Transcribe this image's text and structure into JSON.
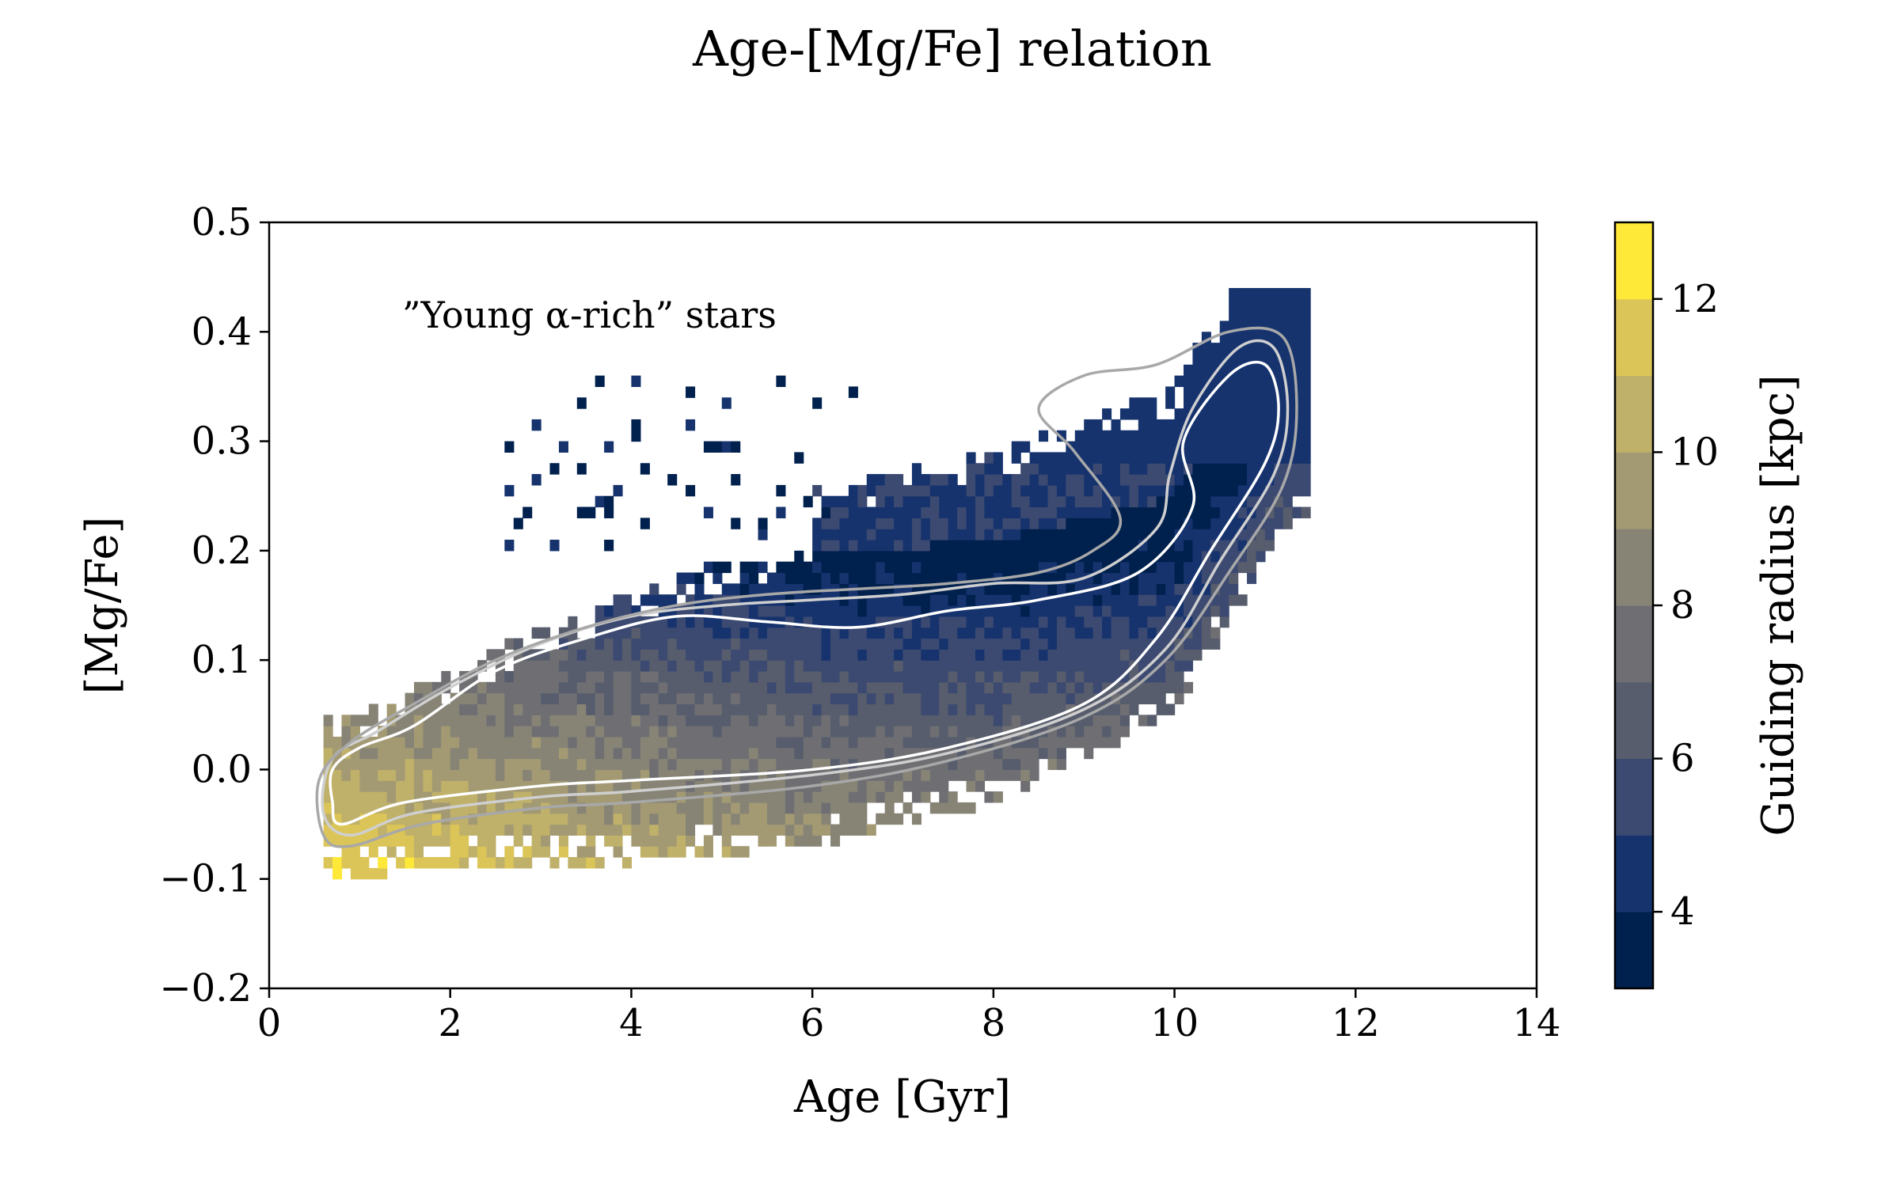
{
  "chart_data": {
    "type": "heatmap",
    "title": "Age-[Mg/Fe] relation",
    "xlabel": "Age [Gyr]",
    "ylabel": "[Mg/Fe]",
    "xlim": [
      0,
      14
    ],
    "ylim": [
      -0.2,
      0.5
    ],
    "xticks": [
      0,
      2,
      4,
      6,
      8,
      10,
      12,
      14
    ],
    "xtick_labels": [
      "0",
      "2",
      "4",
      "6",
      "8",
      "10",
      "12",
      "14"
    ],
    "yticks": [
      -0.2,
      -0.1,
      0.0,
      0.1,
      0.2,
      0.3,
      0.4,
      0.5
    ],
    "ytick_labels": [
      "−0.2",
      "−0.1",
      "0.0",
      "0.1",
      "0.2",
      "0.3",
      "0.4",
      "0.5"
    ],
    "grid": false,
    "annotation": "”Young α-rich” stars",
    "colorbar": {
      "label": "Guiding radius [kpc]",
      "range": [
        3,
        13
      ],
      "ticks": [
        4,
        6,
        8,
        10,
        12
      ],
      "tick_labels": [
        "4",
        "6",
        "8",
        "10",
        "12"
      ],
      "levels": [
        {
          "from": 3,
          "to": 4,
          "color": "#00204d"
        },
        {
          "from": 4,
          "to": 5,
          "color": "#16336e"
        },
        {
          "from": 5,
          "to": 6,
          "color": "#3c4a71"
        },
        {
          "from": 6,
          "to": 7,
          "color": "#575d6d"
        },
        {
          "from": 7,
          "to": 8,
          "color": "#6f6f73"
        },
        {
          "from": 8,
          "to": 9,
          "color": "#878476"
        },
        {
          "from": 9,
          "to": 10,
          "color": "#a39a73"
        },
        {
          "from": 10,
          "to": 11,
          "color": "#bfb06a"
        },
        {
          "from": 11,
          "to": 12,
          "color": "#dcc558"
        },
        {
          "from": 12,
          "to": 13,
          "color": "#fee838"
        }
      ]
    },
    "heatmap_model": {
      "bin_width_gyr": 0.1,
      "bin_height_dex": 0.01,
      "low_sequence_mgfe_by_age": [
        [
          0.6,
          -0.03
        ],
        [
          2,
          -0.02
        ],
        [
          4,
          -0.015
        ],
        [
          6,
          0.0
        ],
        [
          8,
          0.04
        ],
        [
          10,
          0.12
        ],
        [
          11.3,
          0.3
        ]
      ],
      "high_sequence_mgfe_by_age": [
        [
          1.0,
          0.0
        ],
        [
          3,
          0.08
        ],
        [
          5,
          0.14
        ],
        [
          8,
          0.16
        ],
        [
          10,
          0.2
        ],
        [
          11.2,
          0.36
        ]
      ]
    },
    "contours": [
      {
        "level": "inner",
        "color": "#ffffff",
        "points": [
          [
            0.8,
            -0.05
          ],
          [
            1.5,
            -0.03
          ],
          [
            3,
            -0.015
          ],
          [
            4,
            -0.01
          ],
          [
            6,
            0.0
          ],
          [
            7.5,
            0.02
          ],
          [
            9,
            0.06
          ],
          [
            9.8,
            0.12
          ],
          [
            10.4,
            0.2
          ],
          [
            11.0,
            0.28
          ],
          [
            11.15,
            0.33
          ],
          [
            11.0,
            0.37
          ],
          [
            10.6,
            0.36
          ],
          [
            10.1,
            0.3
          ],
          [
            10.2,
            0.24
          ],
          [
            9.6,
            0.18
          ],
          [
            8.5,
            0.155
          ],
          [
            7.5,
            0.145
          ],
          [
            6.5,
            0.13
          ],
          [
            5.5,
            0.135
          ],
          [
            4.5,
            0.14
          ],
          [
            3.5,
            0.12
          ],
          [
            2.5,
            0.09
          ],
          [
            1.6,
            0.04
          ],
          [
            1.0,
            0.02
          ],
          [
            0.7,
            0.0
          ],
          [
            0.7,
            -0.03
          ]
        ]
      },
      {
        "level": "middle",
        "color": "#cfcfcf",
        "points": [
          [
            0.9,
            -0.06
          ],
          [
            1.6,
            -0.04
          ],
          [
            3,
            -0.025
          ],
          [
            4,
            -0.02
          ],
          [
            6,
            -0.005
          ],
          [
            7.5,
            0.015
          ],
          [
            9,
            0.055
          ],
          [
            9.9,
            0.11
          ],
          [
            10.5,
            0.19
          ],
          [
            11.1,
            0.27
          ],
          [
            11.25,
            0.33
          ],
          [
            11.1,
            0.385
          ],
          [
            10.7,
            0.385
          ],
          [
            10.2,
            0.33
          ],
          [
            9.95,
            0.27
          ],
          [
            9.8,
            0.22
          ],
          [
            9,
            0.175
          ],
          [
            8,
            0.17
          ],
          [
            7,
            0.16
          ],
          [
            6,
            0.155
          ],
          [
            5,
            0.15
          ],
          [
            4,
            0.14
          ],
          [
            3,
            0.115
          ],
          [
            2,
            0.075
          ],
          [
            1.2,
            0.035
          ],
          [
            0.7,
            0.01
          ],
          [
            0.6,
            -0.04
          ]
        ]
      },
      {
        "level": "outer",
        "color": "#a8a8a8",
        "points": [
          [
            0.9,
            -0.07
          ],
          [
            1.7,
            -0.05
          ],
          [
            3,
            -0.035
          ],
          [
            4,
            -0.03
          ],
          [
            6,
            -0.015
          ],
          [
            7.5,
            0.008
          ],
          [
            9,
            0.048
          ],
          [
            9.9,
            0.1
          ],
          [
            10.6,
            0.18
          ],
          [
            11.2,
            0.26
          ],
          [
            11.35,
            0.33
          ],
          [
            11.2,
            0.395
          ],
          [
            10.6,
            0.4
          ],
          [
            9.8,
            0.37
          ],
          [
            9.0,
            0.36
          ],
          [
            8.5,
            0.33
          ],
          [
            8.9,
            0.29
          ],
          [
            9.4,
            0.23
          ],
          [
            9.1,
            0.2
          ],
          [
            8.5,
            0.18
          ],
          [
            7.5,
            0.17
          ],
          [
            6.5,
            0.165
          ],
          [
            5.5,
            0.16
          ],
          [
            4.5,
            0.15
          ],
          [
            3.5,
            0.13
          ],
          [
            2.5,
            0.1
          ],
          [
            1.6,
            0.06
          ],
          [
            0.9,
            0.025
          ],
          [
            0.55,
            -0.01
          ],
          [
            0.6,
            -0.06
          ]
        ]
      }
    ]
  }
}
